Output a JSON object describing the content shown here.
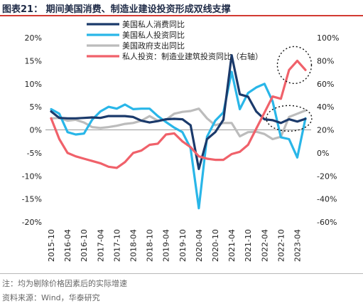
{
  "figure": {
    "title": "图表21：  期间美国消费、制造业建设投资形成双线支撑",
    "footnote": "注：均为剔除价格因素后的实际增速",
    "source": "资料来源：Wind，华泰研究"
  },
  "chart_data": {
    "type": "line",
    "x": [
      "2015-10",
      "2016-01",
      "2016-04",
      "2016-07",
      "2016-10",
      "2017-01",
      "2017-04",
      "2017-07",
      "2017-10",
      "2018-01",
      "2018-04",
      "2018-07",
      "2018-10",
      "2019-01",
      "2019-04",
      "2019-07",
      "2019-10",
      "2020-01",
      "2020-04",
      "2020-07",
      "2020-10",
      "2021-01",
      "2021-04",
      "2021-07",
      "2021-10",
      "2022-01",
      "2022-04",
      "2022-07",
      "2022-10",
      "2023-01",
      "2023-04",
      "2023-07"
    ],
    "xtick_labels": [
      "2015-10",
      "2016-04",
      "2016-10",
      "2017-04",
      "2017-10",
      "2018-04",
      "2018-10",
      "2019-04",
      "2019-10",
      "2020-04",
      "2020-10",
      "2021-04",
      "2021-10",
      "2022-04",
      "2022-10",
      "2023-04"
    ],
    "left_axis": {
      "min": -20,
      "max": 20,
      "ticks": [
        "20%",
        "15%",
        "10%",
        "5%",
        "0%",
        "-5%",
        "-10%",
        "-15%",
        "-20%"
      ]
    },
    "right_axis": {
      "min": -60,
      "max": 100,
      "ticks": [
        "100%",
        "80%",
        "60%",
        "40%",
        "20%",
        "0%",
        "-20%",
        "-40%",
        "-60%"
      ]
    },
    "series": [
      {
        "name": "美国私人消费同比",
        "color": "#1b3a6b",
        "axis": "left",
        "values": [
          4.0,
          2.6,
          2.5,
          2.5,
          2.6,
          2.7,
          2.6,
          3.0,
          3.0,
          3.0,
          2.8,
          2.0,
          1.6,
          1.9,
          2.3,
          2.4,
          2.3,
          1.0,
          -8.5,
          -2.0,
          -0.5,
          2.2,
          16.2,
          7.7,
          7.2,
          4.0,
          2.3,
          2.1,
          1.5,
          2.3,
          1.8,
          2.4
        ]
      },
      {
        "name": "美国私人投资同比",
        "color": "#29b6e8",
        "axis": "left",
        "values": [
          4.5,
          3.5,
          -0.5,
          -1.0,
          -0.8,
          2.2,
          4.0,
          5.0,
          4.6,
          5.5,
          4.5,
          4.6,
          4.6,
          3.0,
          1.7,
          0.5,
          -0.5,
          -4.0,
          -17.0,
          -1.5,
          2.0,
          3.8,
          12.6,
          4.5,
          8.0,
          9.2,
          10.0,
          6.2,
          -1.6,
          -2.0,
          -6.0,
          2.5
        ]
      },
      {
        "name": "美国政府支出同比",
        "color": "#bcbcbc",
        "axis": "left",
        "values": [
          2.5,
          2.6,
          2.0,
          2.2,
          1.6,
          0.6,
          0.4,
          0.6,
          0.9,
          1.3,
          1.5,
          2.0,
          3.0,
          2.0,
          2.2,
          3.5,
          3.9,
          4.1,
          4.6,
          2.5,
          1.0,
          1.5,
          1.5,
          -1.4,
          -0.5,
          -0.4,
          -0.9,
          -2.0,
          -1.5,
          2.8,
          3.5,
          4.2
        ]
      },
      {
        "name": "私人投资：制造业建筑投资同比（右轴）",
        "color": "#f0616a",
        "axis": "right",
        "values": [
          30,
          12,
          0,
          -3,
          -5,
          -7,
          -9,
          -12,
          -13,
          -8,
          0,
          2,
          7,
          8,
          16,
          17,
          10,
          5,
          -3,
          -5,
          -6,
          -6,
          -1,
          1,
          7,
          21,
          35,
          49,
          47,
          72,
          80,
          72
        ]
      }
    ],
    "annotations": [
      "dotted-ellipse-around-2023-peak",
      "dotted-ellipse-around-2023-left-series"
    ],
    "grid": false,
    "legend": "top-left"
  }
}
